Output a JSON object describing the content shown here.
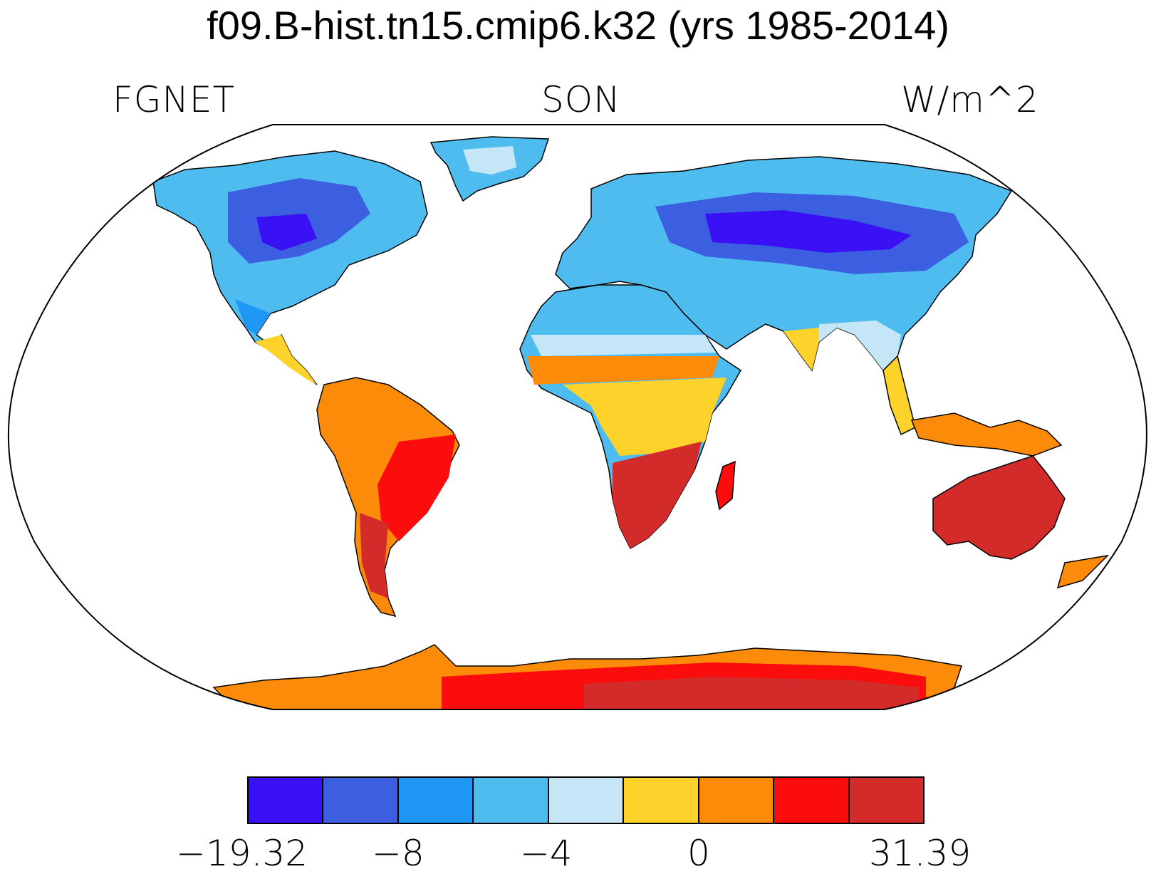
{
  "title": "f09.B-hist.tn15.cmip6.k32 (yrs 1985-2014)",
  "left_label": "FGNET",
  "center_label": "SON",
  "right_label": "W/m^2",
  "colorbar": {
    "colors": [
      "#3a10f5",
      "#3b5fe0",
      "#1f97f5",
      "#4fbcf0",
      "#c5e6f7",
      "#fdd22a",
      "#fd8b0a",
      "#fc0d0d",
      "#d32a2a"
    ],
    "labels": [
      {
        "text": "−19.32",
        "value": -19.32
      },
      {
        "text": "−8",
        "value": -8
      },
      {
        "text": "−4",
        "value": -4
      },
      {
        "text": "0",
        "value": 0
      },
      {
        "text": "31.39",
        "value": 31.39
      }
    ]
  },
  "map": {
    "projection": "Robinson",
    "background": "#ffffff",
    "outline_color": "#000000"
  }
}
